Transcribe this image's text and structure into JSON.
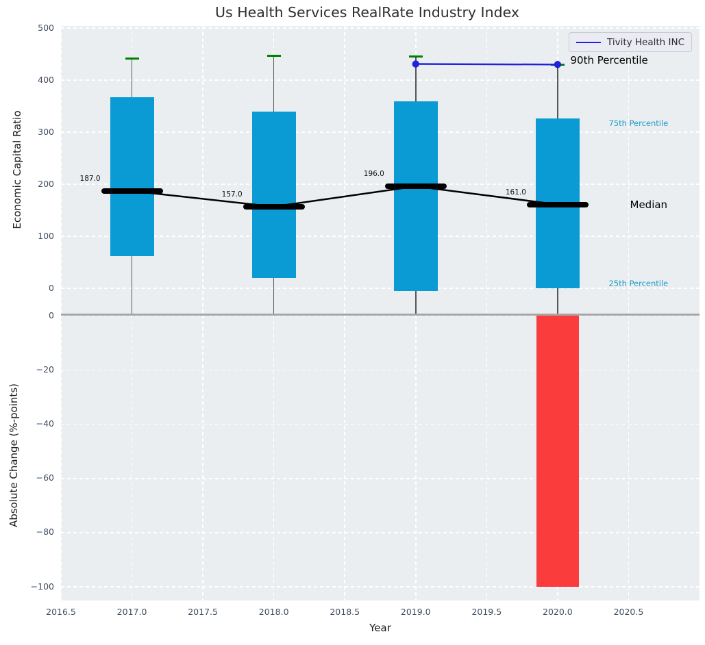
{
  "title": "Us Health Services RealRate Industry Index",
  "legend": {
    "entries": [
      {
        "label": "Tivity Health INC",
        "color": "#2121df"
      }
    ]
  },
  "chart_data": {
    "type": "box-bar-combo",
    "title": "Us Health Services RealRate Industry Index",
    "xlabel": "Year",
    "xlim": [
      2016.5,
      2021.0
    ],
    "xticks": [
      2016.5,
      2017.0,
      2017.5,
      2018.0,
      2018.5,
      2019.0,
      2019.5,
      2020.0,
      2020.5
    ],
    "grid": true,
    "top_panel": {
      "ylabel": "Economic Capital Ratio",
      "ylim": [
        -50.5,
        504
      ],
      "yticks": [
        0,
        100,
        200,
        300,
        400,
        500
      ],
      "boxes": [
        {
          "year": 2017,
          "q25": 62,
          "median": 187,
          "q75": 367,
          "p90": 442,
          "median_label": "187.0"
        },
        {
          "year": 2018,
          "q25": 20,
          "median": 157,
          "q75": 340,
          "p90": 447,
          "median_label": "157.0"
        },
        {
          "year": 2019,
          "q25": -5,
          "median": 196,
          "q75": 359,
          "p90": 446,
          "median_label": "196.0"
        },
        {
          "year": 2020,
          "q25": 0,
          "median": 161,
          "q75": 326,
          "p90": 430,
          "median_label": "161.0"
        }
      ],
      "series": [
        {
          "name": "Tivity Health INC",
          "x": [
            2019,
            2020
          ],
          "y": [
            431,
            430
          ],
          "color": "#2121df"
        }
      ],
      "right_labels": [
        {
          "text": "90th Percentile",
          "x": 2020.09,
          "value": 437,
          "color": "#000000",
          "size": 15
        },
        {
          "text": "75th Percentile",
          "x": 2020.36,
          "value": 316,
          "color": "#1f9acd",
          "size": 11.5
        },
        {
          "text": "Median",
          "x": 2020.51,
          "value": 160,
          "color": "#000000",
          "size": 15
        },
        {
          "text": "25th Percentile",
          "x": 2020.36,
          "value": 9,
          "color": "#1f9acd",
          "size": 11.5
        }
      ]
    },
    "bottom_panel": {
      "ylabel": "Absolute Change (%-points)",
      "ylim": [
        -105,
        0.4
      ],
      "yticks": [
        0,
        -20,
        -40,
        -60,
        -80,
        -100
      ],
      "bars": [
        {
          "year": 2020,
          "value": -100
        }
      ]
    },
    "colors": {
      "box": "#0a9bd4",
      "bar_negative": "#fa3c3c",
      "percentile_cap": "#008000",
      "median": "#000000",
      "whisker": "#555555",
      "series_line": "#2121df",
      "grid": "#ffffff",
      "panel_background": "#eaeef0",
      "zero_line": "#a6a6a6",
      "tick_label": "#3f4d5f",
      "percentile_label": "#1f9acd"
    }
  }
}
